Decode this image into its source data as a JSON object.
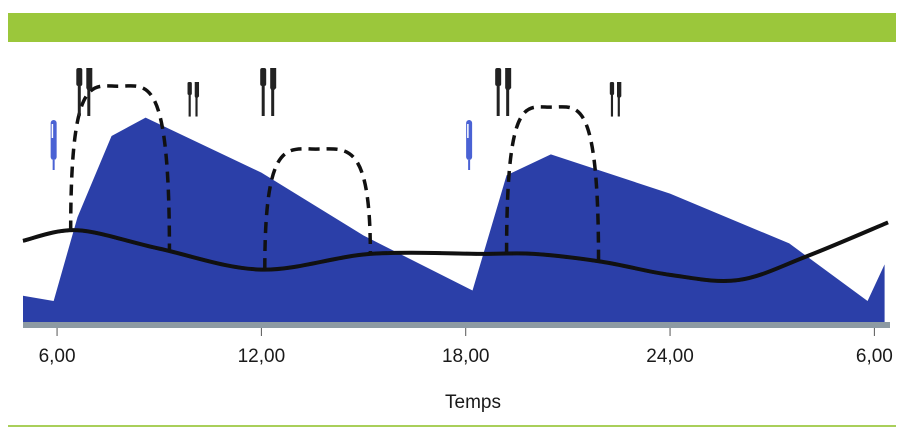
{
  "chart_data": {
    "type": "area",
    "xlabel": "Temps",
    "x_ticks": [
      "6,00",
      "12,00",
      "18,00",
      "24,00",
      "6,00"
    ],
    "x_tick_hours": [
      6,
      12,
      18,
      24,
      30
    ],
    "xlim": [
      5,
      30.4
    ],
    "ylim": [
      0,
      100
    ],
    "series": [
      {
        "kind": "area",
        "color": "#2b3fa8",
        "x": [
          5,
          5.9,
          6.6,
          7.6,
          8.6,
          12,
          15,
          18.2,
          19.2,
          20.5,
          24,
          27.5,
          29.8,
          30.3
        ],
        "y": [
          10,
          8,
          40,
          71,
          78,
          57,
          33,
          12,
          56,
          64,
          49,
          30,
          8,
          22
        ]
      },
      {
        "kind": "line",
        "color": "#111111",
        "dash": "solid",
        "x": [
          5,
          6.6,
          9,
          12,
          15.2,
          18.5,
          20,
          22,
          24,
          26,
          28,
          30.4
        ],
        "y": [
          31,
          35,
          28,
          20,
          26,
          26,
          26,
          23,
          18,
          16,
          25,
          38
        ]
      },
      {
        "kind": "excursion",
        "color": "#111111",
        "dash": "dashed",
        "x": [
          6.4,
          7.8,
          9.3
        ],
        "peak": 90
      },
      {
        "kind": "excursion",
        "color": "#111111",
        "dash": "dashed",
        "x": [
          12.1,
          13.6,
          15.2
        ],
        "peak": 66
      },
      {
        "kind": "excursion",
        "color": "#111111",
        "dash": "dashed",
        "x": [
          19.2,
          20.5,
          21.9
        ],
        "peak": 82
      }
    ],
    "insulin_markers_hours": [
      5.9,
      18.1
    ],
    "meal_markers": [
      {
        "hour": 6.8,
        "size": "large"
      },
      {
        "hour": 10.0,
        "size": "small"
      },
      {
        "hour": 12.2,
        "size": "large"
      },
      {
        "hour": 19.1,
        "size": "large"
      },
      {
        "hour": 22.4,
        "size": "small"
      }
    ],
    "colors": {
      "area": "#2b3fa8",
      "baseline": "#8d9aa3",
      "pen": "#4a62d4",
      "meal_icon": "#222222",
      "band": "#9bc73b"
    }
  }
}
